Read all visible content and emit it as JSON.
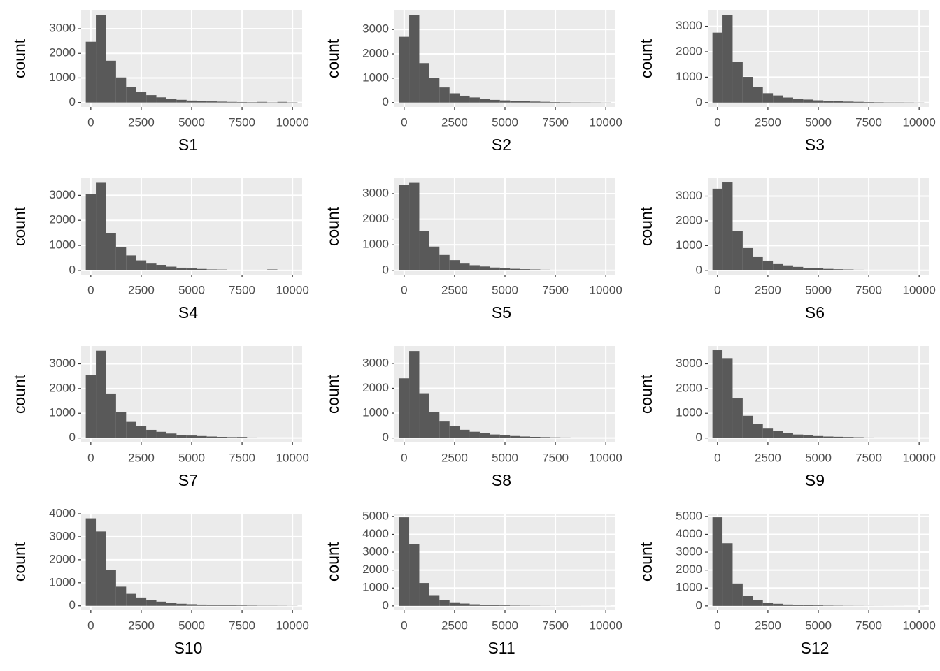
{
  "chart_data": [
    {
      "type": "histogram",
      "xlabel": "S1",
      "ylabel": "count",
      "color": "#595959",
      "grid": true,
      "bins": [
        -250,
        250,
        750,
        1250,
        1750,
        2250,
        2750,
        3250,
        3750,
        4250,
        4750,
        5250,
        5750,
        6250,
        6750,
        7250,
        7750,
        8250,
        8750,
        9250,
        9750,
        10250
      ],
      "counts": [
        2470,
        3550,
        1700,
        1020,
        640,
        440,
        300,
        210,
        150,
        110,
        80,
        60,
        45,
        35,
        25,
        20,
        15,
        25,
        10,
        25,
        10
      ],
      "xlim": [
        -480,
        10480
      ],
      "xticks": [
        0,
        2500,
        5000,
        7500,
        10000
      ],
      "ylim": [
        -180,
        3740
      ],
      "yticks": [
        0,
        1000,
        2000,
        3000
      ]
    },
    {
      "type": "histogram",
      "xlabel": "S2",
      "ylabel": "count",
      "color": "#595959",
      "grid": true,
      "bins": [
        -250,
        250,
        750,
        1250,
        1750,
        2250,
        2750,
        3250,
        3750,
        4250,
        4750,
        5250,
        5750,
        6250,
        6750,
        7250,
        7750,
        8250,
        8750,
        9250,
        9750,
        10250
      ],
      "counts": [
        2700,
        3600,
        1620,
        1000,
        620,
        380,
        280,
        210,
        150,
        110,
        90,
        70,
        50,
        40,
        30,
        20,
        15,
        10,
        10,
        8,
        5
      ],
      "xlim": [
        -480,
        10480
      ],
      "xticks": [
        0,
        2500,
        5000,
        7500,
        10000
      ],
      "ylim": [
        -180,
        3780
      ],
      "yticks": [
        0,
        1000,
        2000,
        3000
      ]
    },
    {
      "type": "histogram",
      "xlabel": "S3",
      "ylabel": "count",
      "color": "#595959",
      "grid": true,
      "bins": [
        -250,
        250,
        750,
        1250,
        1750,
        2250,
        2750,
        3250,
        3750,
        4250,
        4750,
        5250,
        5750,
        6250,
        6750,
        7250,
        7750,
        8250,
        8750,
        9250,
        9750,
        10250
      ],
      "counts": [
        2750,
        3450,
        1600,
        1010,
        620,
        370,
        280,
        200,
        150,
        120,
        90,
        70,
        50,
        40,
        30,
        20,
        15,
        10,
        10,
        8,
        5
      ],
      "xlim": [
        -480,
        10480
      ],
      "xticks": [
        0,
        2500,
        5000,
        7500,
        10000
      ],
      "ylim": [
        -170,
        3620
      ],
      "yticks": [
        0,
        1000,
        2000,
        3000
      ]
    },
    {
      "type": "histogram",
      "xlabel": "S4",
      "ylabel": "count",
      "color": "#595959",
      "grid": true,
      "bins": [
        -250,
        250,
        750,
        1250,
        1750,
        2250,
        2750,
        3250,
        3750,
        4250,
        4750,
        5250,
        5750,
        6250,
        6750,
        7250,
        7750,
        8250,
        8750,
        9250,
        9750,
        10250
      ],
      "counts": [
        3050,
        3500,
        1480,
        930,
        600,
        400,
        300,
        220,
        150,
        110,
        80,
        60,
        40,
        35,
        25,
        20,
        15,
        10,
        40,
        10,
        10
      ],
      "xlim": [
        -480,
        10480
      ],
      "xticks": [
        0,
        2500,
        5000,
        7500,
        10000
      ],
      "ylim": [
        -170,
        3680
      ],
      "yticks": [
        0,
        1000,
        2000,
        3000
      ]
    },
    {
      "type": "histogram",
      "xlabel": "S5",
      "ylabel": "count",
      "color": "#595959",
      "grid": true,
      "bins": [
        -250,
        250,
        750,
        1250,
        1750,
        2250,
        2750,
        3250,
        3750,
        4250,
        4750,
        5250,
        5750,
        6250,
        6750,
        7250,
        7750,
        8250,
        8750,
        9250,
        9750,
        10250
      ],
      "counts": [
        3350,
        3420,
        1530,
        930,
        600,
        400,
        290,
        200,
        150,
        110,
        80,
        60,
        45,
        35,
        25,
        20,
        15,
        10,
        10,
        8,
        5
      ],
      "xlim": [
        -480,
        10480
      ],
      "xticks": [
        0,
        2500,
        5000,
        7500,
        10000
      ],
      "ylim": [
        -170,
        3600
      ],
      "yticks": [
        0,
        1000,
        2000,
        3000
      ]
    },
    {
      "type": "histogram",
      "xlabel": "S6",
      "ylabel": "count",
      "color": "#595959",
      "grid": true,
      "bins": [
        -250,
        250,
        750,
        1250,
        1750,
        2250,
        2750,
        3250,
        3750,
        4250,
        4750,
        5250,
        5750,
        6250,
        6750,
        7250,
        7750,
        8250,
        8750,
        9250,
        9750,
        10250
      ],
      "counts": [
        3300,
        3550,
        1580,
        900,
        560,
        390,
        280,
        200,
        140,
        100,
        80,
        60,
        45,
        35,
        25,
        15,
        10,
        10,
        8,
        5,
        5
      ],
      "xlim": [
        -480,
        10480
      ],
      "xticks": [
        0,
        2500,
        5000,
        7500,
        10000
      ],
      "ylim": [
        -175,
        3720
      ],
      "yticks": [
        0,
        1000,
        2000,
        3000
      ]
    },
    {
      "type": "histogram",
      "xlabel": "S7",
      "ylabel": "count",
      "color": "#595959",
      "grid": true,
      "bins": [
        -250,
        250,
        750,
        1250,
        1750,
        2250,
        2750,
        3250,
        3750,
        4250,
        4750,
        5250,
        5750,
        6250,
        6750,
        7250,
        7750,
        8250,
        8750,
        9250,
        9750,
        10250
      ],
      "counts": [
        2550,
        3530,
        1800,
        1040,
        650,
        470,
        330,
        250,
        180,
        130,
        100,
        80,
        60,
        45,
        35,
        40,
        20,
        15,
        10,
        10,
        8
      ],
      "xlim": [
        -480,
        10480
      ],
      "xticks": [
        0,
        2500,
        5000,
        7500,
        10000
      ],
      "ylim": [
        -180,
        3720
      ],
      "yticks": [
        0,
        1000,
        2000,
        3000
      ]
    },
    {
      "type": "histogram",
      "xlabel": "S8",
      "ylabel": "count",
      "color": "#595959",
      "grid": true,
      "bins": [
        -250,
        250,
        750,
        1250,
        1750,
        2250,
        2750,
        3250,
        3750,
        4250,
        4750,
        5250,
        5750,
        6250,
        6750,
        7250,
        7750,
        8250,
        8750,
        9250,
        9750,
        10250
      ],
      "counts": [
        2400,
        3500,
        1800,
        1040,
        660,
        470,
        330,
        250,
        190,
        140,
        110,
        80,
        60,
        45,
        35,
        25,
        20,
        15,
        10,
        10,
        8
      ],
      "xlim": [
        -480,
        10480
      ],
      "xticks": [
        0,
        2500,
        5000,
        7500,
        10000
      ],
      "ylim": [
        -180,
        3700
      ],
      "yticks": [
        0,
        1000,
        2000,
        3000
      ]
    },
    {
      "type": "histogram",
      "xlabel": "S9",
      "ylabel": "count",
      "color": "#595959",
      "grid": true,
      "bins": [
        -250,
        250,
        750,
        1250,
        1750,
        2250,
        2750,
        3250,
        3750,
        4250,
        4750,
        5250,
        5750,
        6250,
        6750,
        7250,
        7750,
        8250,
        8750,
        9250,
        9750,
        10250
      ],
      "counts": [
        3550,
        3230,
        1600,
        900,
        580,
        380,
        280,
        200,
        140,
        110,
        80,
        60,
        50,
        40,
        30,
        20,
        15,
        10,
        10,
        8,
        5
      ],
      "xlim": [
        -480,
        10480
      ],
      "xticks": [
        0,
        2500,
        5000,
        7500,
        10000
      ],
      "ylim": [
        -180,
        3720
      ],
      "yticks": [
        0,
        1000,
        2000,
        3000
      ]
    },
    {
      "type": "histogram",
      "xlabel": "S10",
      "ylabel": "count",
      "color": "#595959",
      "grid": true,
      "bins": [
        -250,
        250,
        750,
        1250,
        1750,
        2250,
        2750,
        3250,
        3750,
        4250,
        4750,
        5250,
        5750,
        6250,
        6750,
        7250,
        7750,
        8250,
        8750,
        9250,
        9750,
        10250
      ],
      "counts": [
        3800,
        3230,
        1560,
        830,
        520,
        360,
        250,
        180,
        130,
        90,
        70,
        55,
        45,
        35,
        30,
        20,
        15,
        10,
        10,
        8,
        5
      ],
      "xlim": [
        -480,
        10480
      ],
      "xticks": [
        0,
        2500,
        5000,
        7500,
        10000
      ],
      "ylim": [
        -190,
        4000
      ],
      "yticks": [
        0,
        1000,
        2000,
        3000,
        4000
      ]
    },
    {
      "type": "histogram",
      "xlabel": "S11",
      "ylabel": "count",
      "color": "#595959",
      "grid": true,
      "bins": [
        -250,
        250,
        750,
        1250,
        1750,
        2250,
        2750,
        3250,
        3750,
        4250,
        4750,
        5250,
        5750,
        6250,
        6750,
        7250,
        7750,
        8250,
        8750,
        9250,
        9750,
        10250
      ],
      "counts": [
        4950,
        3450,
        1280,
        600,
        320,
        200,
        130,
        90,
        60,
        40,
        30,
        20,
        15,
        10,
        8,
        6,
        5,
        4,
        3,
        2,
        2
      ],
      "xlim": [
        -480,
        10480
      ],
      "xticks": [
        0,
        2500,
        5000,
        7500,
        10000
      ],
      "ylim": [
        -240,
        5150
      ],
      "yticks": [
        0,
        1000,
        2000,
        3000,
        4000,
        5000
      ]
    },
    {
      "type": "histogram",
      "xlabel": "S12",
      "ylabel": "count",
      "color": "#595959",
      "grid": true,
      "bins": [
        -250,
        250,
        750,
        1250,
        1750,
        2250,
        2750,
        3250,
        3750,
        4250,
        4750,
        5250,
        5750,
        6250,
        6750,
        7250,
        7750,
        8250,
        8750,
        9250,
        9750,
        10250
      ],
      "counts": [
        4950,
        3500,
        1250,
        580,
        310,
        190,
        120,
        80,
        55,
        40,
        30,
        20,
        15,
        10,
        8,
        6,
        5,
        4,
        3,
        2,
        2
      ],
      "xlim": [
        -480,
        10480
      ],
      "xticks": [
        0,
        2500,
        5000,
        7500,
        10000
      ],
      "ylim": [
        -240,
        5150
      ],
      "yticks": [
        0,
        1000,
        2000,
        3000,
        4000,
        5000
      ]
    }
  ]
}
